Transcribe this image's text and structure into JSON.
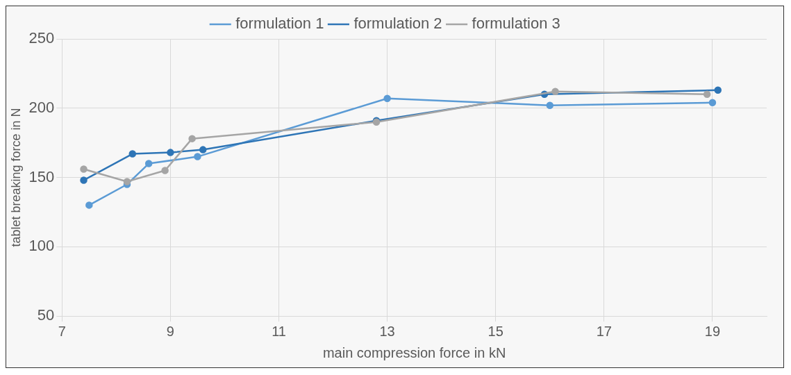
{
  "chart_data": {
    "type": "line",
    "xlabel": "main compression force in kN",
    "ylabel": "tablet breaking force in N",
    "xlim": [
      7,
      20
    ],
    "xticks": [
      7,
      9,
      11,
      13,
      15,
      17,
      19
    ],
    "ylim": [
      50,
      250
    ],
    "yticks": [
      50,
      100,
      150,
      200,
      250
    ],
    "grid": true,
    "legend": "top",
    "marker": "circle",
    "line_style": "solid",
    "series": [
      {
        "name": "formulation 1",
        "color": "#5b9bd5",
        "x": [
          7.5,
          8.2,
          8.6,
          9.5,
          13,
          16,
          19
        ],
        "values": [
          130,
          145,
          160,
          165,
          207,
          202,
          204
        ]
      },
      {
        "name": "formulation 2",
        "color": "#2e75b6",
        "x": [
          7.4,
          8.3,
          9,
          9.6,
          12.8,
          15.9,
          19.1
        ],
        "values": [
          148,
          167,
          168,
          170,
          191,
          210,
          213
        ]
      },
      {
        "name": "formulation 3",
        "color": "#a5a5a5",
        "x": [
          7.4,
          8.2,
          8.9,
          9.4,
          12.8,
          16.1,
          18.9
        ],
        "values": [
          156,
          147,
          155,
          178,
          190,
          212,
          210
        ]
      }
    ]
  }
}
